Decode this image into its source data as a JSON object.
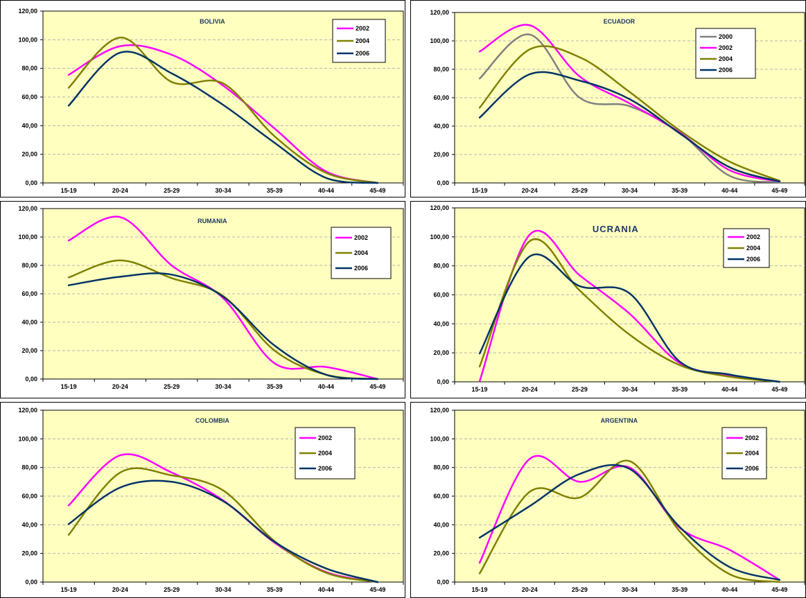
{
  "colors": {
    "page_bg": "#ffffff",
    "plot_bg": "#ffffc0",
    "chart_bg": "#ffffff",
    "gridline": "#b3b3b3",
    "s2000": "#808080",
    "s2002": "#ff00ff",
    "s2004": "#808000",
    "s2006": "#003366"
  },
  "chart_data": [
    {
      "type": "line",
      "title": "BOLIVIA",
      "categories": [
        "15-19",
        "20-24",
        "25-29",
        "30-34",
        "35-39",
        "40-44",
        "45-49"
      ],
      "y_ticks": [
        "0,00",
        "20,00",
        "40,00",
        "60,00",
        "80,00",
        "100,00",
        "120,00"
      ],
      "ylim": [
        0,
        120
      ],
      "grid": true,
      "legend_position": "top-right",
      "series": [
        {
          "name": "2002",
          "color": "#ff00ff",
          "values": [
            75.5,
            95.5,
            89.5,
            68.0,
            38.0,
            8.0,
            0.0
          ]
        },
        {
          "name": "2004",
          "color": "#808000",
          "values": [
            66.5,
            101.5,
            70.5,
            69.5,
            32.5,
            7.0,
            0.0
          ]
        },
        {
          "name": "2006",
          "color": "#003366",
          "values": [
            54.0,
            91.0,
            76.5,
            54.5,
            28.0,
            3.5,
            0.0
          ]
        }
      ]
    },
    {
      "type": "line",
      "title": "ECUADOR",
      "categories": [
        "15-19",
        "20-24",
        "25-29",
        "30-34",
        "35-39",
        "40-44",
        "45-49"
      ],
      "y_ticks": [
        "0,00",
        "20,00",
        "40,00",
        "60,00",
        "80,00",
        "100,00",
        "120,00"
      ],
      "ylim": [
        0,
        120
      ],
      "grid": true,
      "legend_position": "top-right",
      "series": [
        {
          "name": "2000",
          "color": "#808080",
          "values": [
            73.5,
            104.5,
            60.0,
            54.0,
            35.5,
            5.0,
            0.5
          ]
        },
        {
          "name": "2002",
          "color": "#ff00ff",
          "values": [
            92.5,
            111.0,
            75.0,
            56.0,
            35.5,
            9.0,
            1.0
          ]
        },
        {
          "name": "2004",
          "color": "#808000",
          "values": [
            53.0,
            94.0,
            88.5,
            64.0,
            37.0,
            15.0,
            1.5
          ]
        },
        {
          "name": "2006",
          "color": "#003366",
          "values": [
            46.0,
            76.5,
            72.0,
            59.0,
            35.0,
            11.0,
            1.0
          ]
        }
      ]
    },
    {
      "type": "line",
      "title": "RUMANIA",
      "categories": [
        "15-19",
        "20-24",
        "25-29",
        "30-34",
        "35-39",
        "40-44",
        "45-49"
      ],
      "y_ticks": [
        "0,00",
        "20,00",
        "40,00",
        "60,00",
        "80,00",
        "100,00",
        "120,00"
      ],
      "ylim": [
        0,
        120
      ],
      "grid": true,
      "legend_position": "top-right",
      "series": [
        {
          "name": "2002",
          "color": "#ff00ff",
          "values": [
            97.5,
            114.0,
            80.0,
            57.0,
            11.0,
            8.5,
            0.0
          ]
        },
        {
          "name": "2004",
          "color": "#808000",
          "values": [
            71.5,
            83.5,
            71.0,
            58.5,
            20.0,
            3.0,
            0.0
          ]
        },
        {
          "name": "2006",
          "color": "#003366",
          "values": [
            66.0,
            72.0,
            73.5,
            58.0,
            23.5,
            3.0,
            0.0
          ]
        }
      ]
    },
    {
      "type": "line",
      "title": "UCRANIA",
      "categories": [
        "15-19",
        "20-24",
        "25-29",
        "30-34",
        "35-39",
        "40-44",
        "45-49"
      ],
      "y_ticks": [
        "0,00",
        "20,00",
        "40,00",
        "60,00",
        "80,00",
        "100,00",
        "120,00"
      ],
      "ylim": [
        0,
        120
      ],
      "grid": true,
      "legend_position": "top-right",
      "series": [
        {
          "name": "2002",
          "color": "#ff00ff",
          "values": [
            0.5,
            101.5,
            73.5,
            47.0,
            13.0,
            4.5,
            0.0
          ]
        },
        {
          "name": "2004",
          "color": "#808000",
          "values": [
            10.5,
            97.0,
            63.0,
            32.5,
            11.5,
            3.5,
            0.0
          ]
        },
        {
          "name": "2006",
          "color": "#003366",
          "values": [
            19.5,
            86.5,
            66.0,
            61.0,
            14.0,
            5.0,
            0.0
          ]
        }
      ]
    },
    {
      "type": "line",
      "title": "COLOMBIA",
      "categories": [
        "15-19",
        "20-24",
        "25-29",
        "30-34",
        "35-39",
        "40-44",
        "45-49"
      ],
      "y_ticks": [
        "0,00",
        "20,00",
        "40,00",
        "60,00",
        "80,00",
        "100,00",
        "120,00"
      ],
      "ylim": [
        0,
        120
      ],
      "grid": true,
      "legend_position": "top-right",
      "series": [
        {
          "name": "2002",
          "color": "#ff00ff",
          "values": [
            53.5,
            88.5,
            76.5,
            57.0,
            27.5,
            7.0,
            0.0
          ]
        },
        {
          "name": "2004",
          "color": "#808000",
          "values": [
            33.0,
            76.5,
            74.5,
            64.0,
            28.5,
            6.5,
            0.0
          ]
        },
        {
          "name": "2006",
          "color": "#003366",
          "values": [
            40.5,
            66.0,
            70.0,
            56.5,
            28.0,
            9.5,
            0.0
          ]
        }
      ]
    },
    {
      "type": "line",
      "title": "ARGENTINA",
      "categories": [
        "15-19",
        "20-24",
        "25-29",
        "30-34",
        "35-39",
        "40-44",
        "45-49"
      ],
      "y_ticks": [
        "0,00",
        "20,00",
        "40,00",
        "60,00",
        "80,00",
        "100,00",
        "120,00"
      ],
      "ylim": [
        0,
        120
      ],
      "grid": true,
      "legend_position": "top-right",
      "series": [
        {
          "name": "2002",
          "color": "#ff00ff",
          "values": [
            13.5,
            86.0,
            70.0,
            80.0,
            38.0,
            22.5,
            1.5
          ]
        },
        {
          "name": "2004",
          "color": "#808000",
          "values": [
            6.0,
            63.0,
            59.0,
            84.5,
            35.5,
            5.5,
            0.0
          ]
        },
        {
          "name": "2006",
          "color": "#003366",
          "values": [
            31.0,
            53.0,
            75.5,
            79.0,
            38.5,
            10.5,
            1.5
          ]
        }
      ]
    }
  ]
}
